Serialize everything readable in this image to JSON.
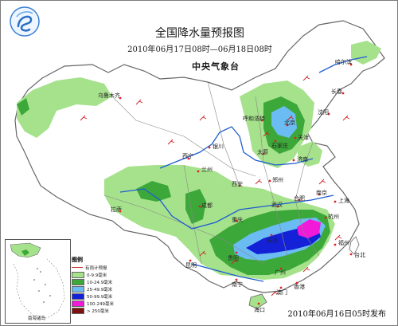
{
  "map": {
    "title": "全国降水量预报图",
    "period": "2010年06月17日08时—06月18日08时",
    "issuer": "中央气象台",
    "release": "2010年06月16日05时发布"
  },
  "cities": [
    {
      "name": "哈尔滨",
      "id": "harbin"
    },
    {
      "name": "长春",
      "id": "changchun"
    },
    {
      "name": "沈阳",
      "id": "shenyang"
    },
    {
      "name": "乌鲁木齐",
      "id": "urumqi"
    },
    {
      "name": "呼和浩特",
      "id": "hohhot"
    },
    {
      "name": "北京",
      "id": "beijing"
    },
    {
      "name": "天津",
      "id": "tianjin"
    },
    {
      "name": "石家庄",
      "id": "shijiazhuang"
    },
    {
      "name": "太原",
      "id": "taiyuan"
    },
    {
      "name": "银川",
      "id": "yinchuan"
    },
    {
      "name": "西宁",
      "id": "xining"
    },
    {
      "name": "兰州",
      "id": "lanzhou"
    },
    {
      "name": "济南",
      "id": "jinan"
    },
    {
      "name": "郑州",
      "id": "zhengzhou"
    },
    {
      "name": "西安",
      "id": "xian"
    },
    {
      "name": "拉萨",
      "id": "lhasa"
    },
    {
      "name": "成都",
      "id": "chengdu"
    },
    {
      "name": "合肥",
      "id": "hefei"
    },
    {
      "name": "南京",
      "id": "nanjing"
    },
    {
      "name": "上海",
      "id": "shanghai"
    },
    {
      "name": "武汉",
      "id": "wuhan"
    },
    {
      "name": "杭州",
      "id": "hangzhou"
    },
    {
      "name": "重庆",
      "id": "chongqing"
    },
    {
      "name": "长沙",
      "id": "changsha"
    },
    {
      "name": "贵阳",
      "id": "guiyang"
    },
    {
      "name": "福州",
      "id": "fuzhou"
    },
    {
      "name": "昆明",
      "id": "kunming"
    },
    {
      "name": "南宁",
      "id": "nanning"
    },
    {
      "name": "广州",
      "id": "guangzhou"
    },
    {
      "name": "台北",
      "id": "taipei"
    },
    {
      "name": "澳门",
      "id": "macao"
    },
    {
      "name": "香港",
      "id": "hongkong"
    },
    {
      "name": "海口",
      "id": "haikou"
    }
  ],
  "inset": {
    "label": "南海诸岛"
  },
  "legend": {
    "title": "图例",
    "items": [
      {
        "label": "有雨计预报",
        "color": "#ffffff"
      },
      {
        "label": "0-9.9毫米",
        "color": "#a6e28c"
      },
      {
        "label": "10-24.9毫米",
        "color": "#3da83a"
      },
      {
        "label": "25-49.9毫米",
        "color": "#6bbcf2"
      },
      {
        "label": "50-99.9毫米",
        "color": "#1421d6"
      },
      {
        "label": "100-249毫米",
        "color": "#f219d9"
      },
      {
        "label": "> 250毫米",
        "color": "#7a1010"
      }
    ]
  },
  "colors": {
    "light_rain": "#a6e28c",
    "moderate_rain": "#3da83a",
    "heavy_rain": "#6bbcf2",
    "rainstorm": "#1421d6",
    "heavy_rainstorm": "#f219d9",
    "river": "#1f5cd1",
    "border": "#666666",
    "wind": "#cc2222"
  }
}
